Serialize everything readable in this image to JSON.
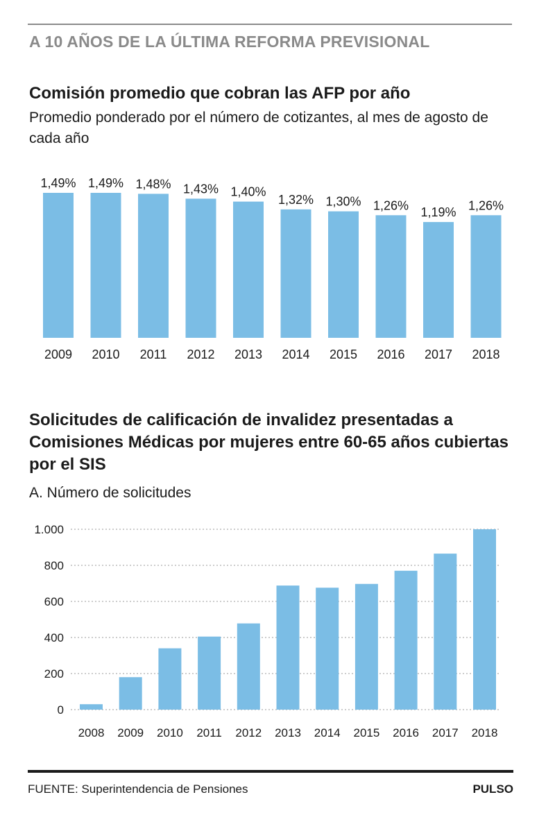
{
  "kicker": "A 10 AÑOS DE LA ÚLTIMA REFORMA PREVISIONAL",
  "source": "FUENTE: Superintendencia de Pensiones",
  "brand": "PULSO",
  "bar_color": "#7bbde5",
  "chart_data": [
    {
      "type": "bar",
      "title": "Comisión promedio que cobran las AFP por año",
      "subtitle": "Promedio ponderado por el número de cotizantes, al mes de agosto de cada año",
      "categories": [
        "2009",
        "2010",
        "2011",
        "2012",
        "2013",
        "2014",
        "2015",
        "2016",
        "2017",
        "2018"
      ],
      "values": [
        1.49,
        1.49,
        1.48,
        1.43,
        1.4,
        1.32,
        1.3,
        1.26,
        1.19,
        1.26
      ],
      "data_labels": [
        "1,49%",
        "1,49%",
        "1,48%",
        "1,43%",
        "1,40%",
        "1,32%",
        "1,30%",
        "1,26%",
        "1,19%",
        "1,26%"
      ],
      "unit": "%",
      "grid": false
    },
    {
      "type": "bar",
      "title": "Solicitudes de calificación de invalidez presentadas a Comisiones Médicas por mujeres entre 60-65 años cubiertas por el SIS",
      "subtitle": "A. Número de solicitudes",
      "categories": [
        "2008",
        "2009",
        "2010",
        "2011",
        "2012",
        "2013",
        "2014",
        "2015",
        "2016",
        "2017",
        "2018"
      ],
      "values": [
        30,
        180,
        340,
        405,
        478,
        688,
        676,
        697,
        770,
        865,
        1000
      ],
      "yticks": [
        0,
        200,
        400,
        600,
        800,
        1000
      ],
      "ytick_labels": [
        "0",
        "200",
        "400",
        "600",
        "800",
        "1.000"
      ],
      "ylim": [
        0,
        1000
      ],
      "grid": true
    }
  ]
}
